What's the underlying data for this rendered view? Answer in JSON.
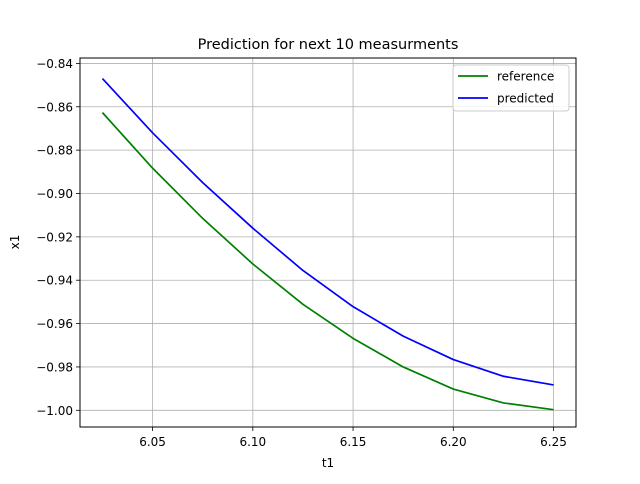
{
  "chart_data": {
    "type": "line",
    "title": "Prediction for next 10 measurments",
    "xlabel": "t1",
    "ylabel": "x1",
    "xlim": [
      6.0138,
      6.2612
    ],
    "ylim": [
      -1.0077,
      -0.8375
    ],
    "xticks": [
      6.05,
      6.1,
      6.15,
      6.2,
      6.25
    ],
    "xtick_labels": [
      "6.05",
      "6.10",
      "6.15",
      "6.20",
      "6.25"
    ],
    "yticks": [
      -1.0,
      -0.98,
      -0.96,
      -0.94,
      -0.92,
      -0.9,
      -0.88,
      -0.86,
      -0.84
    ],
    "ytick_labels": [
      "−1.00",
      "−0.98",
      "−0.96",
      "−0.94",
      "−0.92",
      "−0.90",
      "−0.88",
      "−0.86",
      "−0.84"
    ],
    "grid": true,
    "legend_position": "top-right",
    "x": [
      6.025,
      6.05,
      6.075,
      6.1,
      6.125,
      6.15,
      6.175,
      6.2,
      6.225,
      6.25
    ],
    "series": [
      {
        "name": "reference",
        "color": "#008000",
        "values": [
          -0.8627,
          -0.8883,
          -0.9115,
          -0.9325,
          -0.9511,
          -0.9668,
          -0.98,
          -0.9902,
          -0.9966,
          -0.9997
        ]
      },
      {
        "name": "predicted",
        "color": "#0000ff",
        "values": [
          -0.847,
          -0.872,
          -0.895,
          -0.916,
          -0.9355,
          -0.9522,
          -0.9658,
          -0.9766,
          -0.9843,
          -0.9883
        ]
      }
    ]
  }
}
